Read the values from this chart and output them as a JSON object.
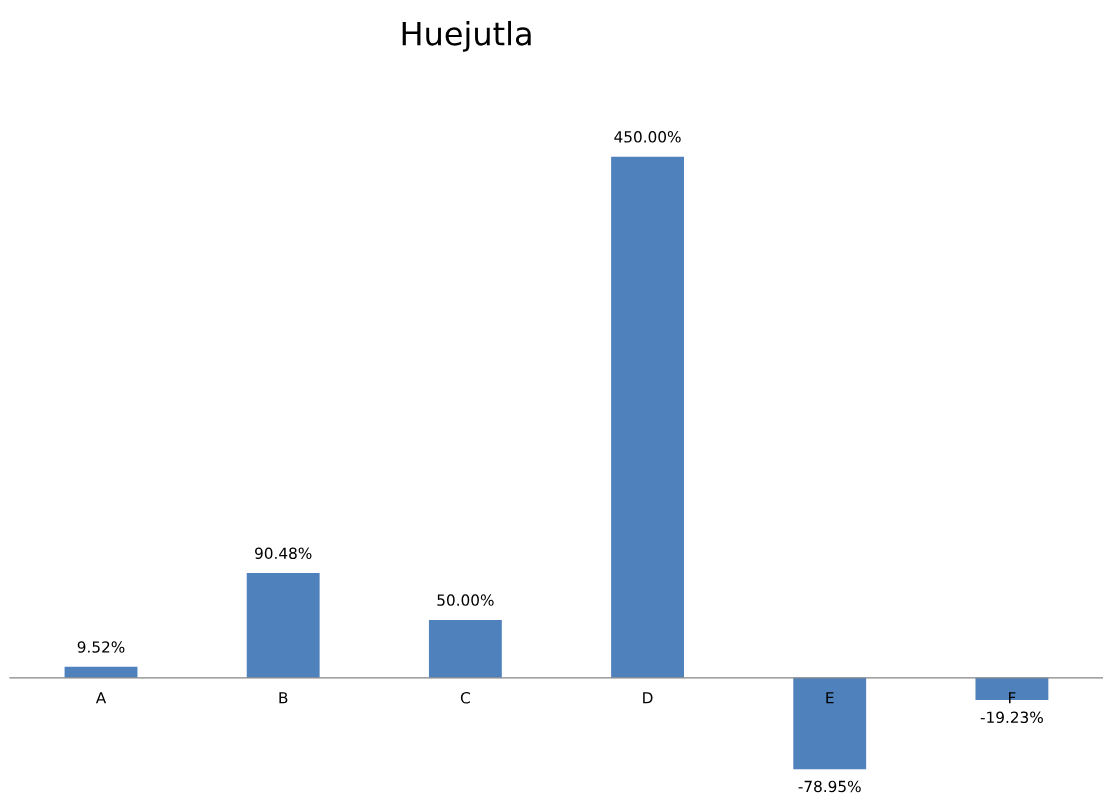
{
  "chart_data": {
    "type": "bar",
    "title": "Huejutla",
    "categories": [
      "A",
      "B",
      "C",
      "D",
      "E",
      "F"
    ],
    "values": [
      9.52,
      90.48,
      50.0,
      450.0,
      -78.95,
      -19.23
    ],
    "value_labels": [
      "9.52%",
      "90.48%",
      "50.00%",
      "450.00%",
      "-78.95%",
      "-19.23%"
    ],
    "color": "#4f81bd",
    "grid": false,
    "legend": false
  }
}
